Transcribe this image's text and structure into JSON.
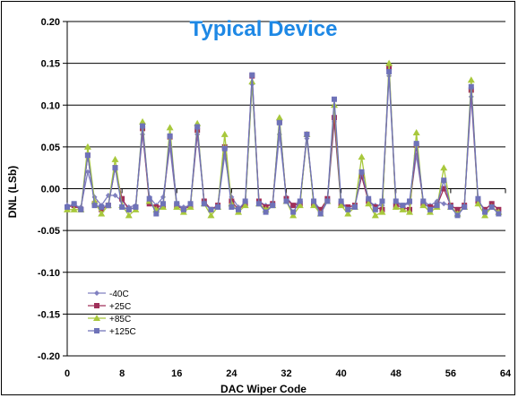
{
  "chart_data": {
    "type": "line",
    "title": "Typical Device",
    "title_color": "#1E88E5",
    "xlabel": "DAC Wiper Code",
    "ylabel": "DNL (LSb)",
    "xlim": [
      0,
      64
    ],
    "ylim": [
      -0.2,
      0.2
    ],
    "x_ticks": [
      "0",
      "8",
      "16",
      "24",
      "32",
      "40",
      "48",
      "56",
      "64"
    ],
    "x_tick_values": [
      0,
      8,
      16,
      24,
      32,
      40,
      48,
      56,
      64
    ],
    "y_ticks": [
      "0.20",
      "0.15",
      "0.10",
      "0.05",
      "0.00",
      "-0.05",
      "-0.10",
      "-0.15",
      "-0.20"
    ],
    "y_tick_values": [
      0.2,
      0.15,
      0.1,
      0.05,
      0.0,
      -0.05,
      -0.1,
      -0.15,
      -0.2
    ],
    "grid": "horizontal",
    "legend_position": "bottom-left",
    "x": [
      0,
      1,
      2,
      3,
      4,
      5,
      6,
      7,
      8,
      9,
      10,
      11,
      12,
      13,
      14,
      15,
      16,
      17,
      18,
      19,
      20,
      21,
      22,
      23,
      24,
      25,
      26,
      27,
      28,
      29,
      30,
      31,
      32,
      33,
      34,
      35,
      36,
      37,
      38,
      39,
      40,
      41,
      42,
      43,
      44,
      45,
      46,
      47,
      48,
      49,
      50,
      51,
      52,
      53,
      54,
      55,
      56,
      57,
      58,
      59,
      60,
      61,
      62,
      63
    ],
    "series": [
      {
        "name": "-40C",
        "color": "#8080C0",
        "marker": "diamond",
        "values": [
          -0.02,
          -0.02,
          -0.022,
          0.02,
          -0.01,
          -0.02,
          -0.008,
          -0.008,
          -0.015,
          -0.022,
          -0.02,
          0.065,
          -0.01,
          -0.02,
          -0.01,
          0.05,
          -0.02,
          -0.022,
          -0.02,
          0.065,
          -0.015,
          -0.025,
          -0.02,
          0.04,
          -0.01,
          -0.022,
          -0.02,
          0.125,
          -0.015,
          -0.02,
          -0.018,
          0.065,
          -0.01,
          -0.02,
          -0.015,
          0.06,
          -0.015,
          -0.025,
          -0.015,
          0.08,
          -0.02,
          -0.022,
          -0.02,
          0.015,
          -0.015,
          -0.02,
          -0.02,
          0.135,
          -0.018,
          -0.02,
          -0.018,
          0.04,
          -0.015,
          -0.02,
          -0.015,
          -0.018,
          -0.02,
          -0.025,
          -0.02,
          0.11,
          -0.015,
          -0.025,
          -0.018,
          -0.025
        ]
      },
      {
        "name": "+25C",
        "color": "#A0305A",
        "marker": "square",
        "values": [
          -0.022,
          -0.02,
          -0.025,
          0.04,
          -0.018,
          -0.025,
          -0.02,
          0.025,
          -0.012,
          -0.025,
          -0.022,
          0.072,
          -0.018,
          -0.022,
          -0.02,
          0.062,
          -0.02,
          -0.025,
          -0.02,
          0.07,
          -0.015,
          -0.025,
          -0.02,
          0.05,
          -0.015,
          -0.025,
          -0.018,
          0.135,
          -0.015,
          -0.022,
          -0.018,
          0.08,
          -0.012,
          -0.02,
          -0.018,
          0.065,
          -0.018,
          -0.025,
          -0.012,
          0.085,
          -0.018,
          -0.022,
          -0.02,
          0.015,
          -0.015,
          -0.022,
          -0.025,
          0.145,
          -0.02,
          -0.022,
          -0.025,
          0.052,
          -0.018,
          -0.022,
          -0.02,
          0.0,
          -0.02,
          -0.025,
          -0.02,
          0.118,
          -0.015,
          -0.025,
          -0.018,
          -0.025
        ]
      },
      {
        "name": "+85C",
        "color": "#A8C83C",
        "marker": "triangle",
        "values": [
          -0.025,
          -0.025,
          -0.025,
          0.05,
          -0.015,
          -0.03,
          -0.02,
          0.035,
          -0.02,
          -0.032,
          -0.025,
          0.08,
          -0.015,
          -0.025,
          -0.022,
          0.073,
          -0.022,
          -0.028,
          -0.022,
          0.078,
          -0.018,
          -0.032,
          -0.022,
          0.065,
          -0.018,
          -0.028,
          -0.02,
          0.128,
          -0.018,
          -0.025,
          -0.02,
          0.085,
          -0.015,
          -0.032,
          -0.02,
          0.065,
          -0.02,
          -0.03,
          -0.015,
          0.1,
          -0.02,
          -0.03,
          -0.022,
          0.038,
          -0.018,
          -0.032,
          -0.028,
          0.15,
          -0.022,
          -0.025,
          -0.028,
          0.067,
          -0.02,
          -0.028,
          -0.022,
          0.025,
          -0.022,
          -0.03,
          -0.022,
          0.13,
          -0.018,
          -0.032,
          -0.022,
          -0.028
        ]
      },
      {
        "name": "+125C",
        "color": "#6E72B8",
        "marker": "square",
        "values": [
          -0.022,
          -0.018,
          -0.025,
          0.04,
          -0.02,
          -0.022,
          -0.02,
          0.025,
          -0.022,
          -0.025,
          -0.022,
          0.075,
          -0.012,
          -0.03,
          -0.018,
          0.063,
          -0.018,
          -0.025,
          -0.018,
          0.074,
          -0.018,
          -0.025,
          -0.022,
          0.048,
          -0.022,
          -0.025,
          -0.015,
          0.136,
          -0.018,
          -0.028,
          -0.02,
          0.079,
          -0.015,
          -0.028,
          -0.015,
          0.065,
          -0.015,
          -0.03,
          -0.015,
          0.107,
          -0.015,
          -0.025,
          -0.022,
          0.02,
          -0.012,
          -0.025,
          -0.015,
          0.14,
          -0.015,
          -0.02,
          -0.015,
          0.054,
          -0.015,
          -0.025,
          -0.02,
          0.01,
          -0.022,
          -0.032,
          -0.022,
          0.122,
          -0.012,
          -0.028,
          -0.022,
          -0.03
        ]
      }
    ]
  }
}
